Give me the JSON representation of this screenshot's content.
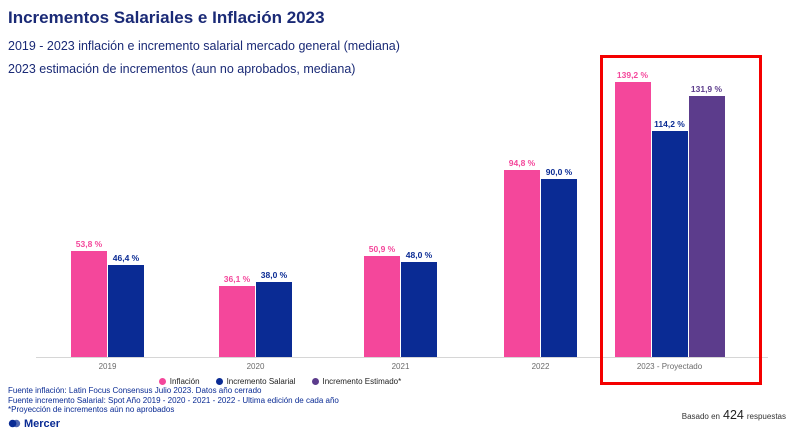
{
  "title": "Incrementos Salariales e Inflación 2023",
  "subtitles": [
    "2019 - 2023 inflación e incremento salarial mercado general (mediana)",
    "2023 estimación de incrementos (aun no aprobados, mediana)"
  ],
  "chart_data": {
    "type": "bar",
    "categories": [
      "2019",
      "2020",
      "2021",
      "2022",
      "2023 - Proyectado"
    ],
    "series": [
      {
        "name": "Inflación",
        "color": "#F4479B",
        "values": [
          53.8,
          36.1,
          50.9,
          94.8,
          139.2
        ],
        "labels": [
          "53,8 %",
          "36,1 %",
          "50,9 %",
          "94,8 %",
          "139,2 %"
        ]
      },
      {
        "name": "Incremento Salarial",
        "color": "#0A2B94",
        "values": [
          46.4,
          38.0,
          48.0,
          90.0,
          114.2
        ],
        "labels": [
          "46,4 %",
          "38,0 %",
          "48,0 %",
          "90,0 %",
          "114,2 %"
        ]
      },
      {
        "name": "Incremento Estimado*",
        "color": "#5C3C8C",
        "values": [
          null,
          null,
          null,
          null,
          131.9
        ],
        "labels": [
          null,
          null,
          null,
          null,
          "131,9 %"
        ]
      }
    ],
    "ylim": [
      0,
      145
    ],
    "grid": false,
    "legend_position": "bottom-center",
    "highlight": {
      "category": "2023 - Proyectado",
      "color": "#F40000"
    }
  },
  "footer": {
    "source_lines": [
      "Fuente inflación: Latin Focus Consensus Julio 2023. Datos año cerrado",
      "Fuente incremento Salarial: Spot Año 2019 - 2020 - 2021 - 2022 - Ultima edición de cada año",
      "*Proyección de incrementos aún no aprobados"
    ],
    "brand": "Mercer",
    "sample_prefix": "Basado en",
    "sample_count": "424",
    "sample_suffix": "respuestas"
  }
}
